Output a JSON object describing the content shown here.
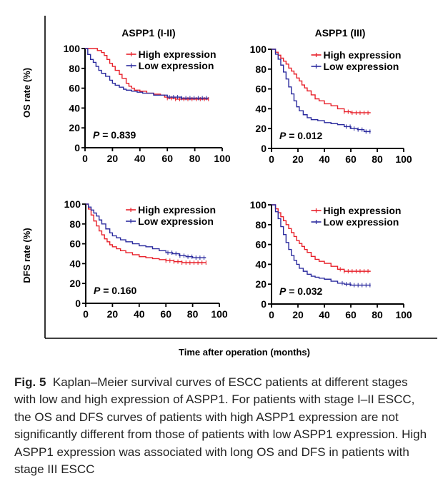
{
  "figure": {
    "label": "Fig. 5",
    "caption": "Kaplan–Meier survival curves of ESCC patients at different stages with low and high expression of ASPP1. For patients with stage I–II ESCC, the OS and DFS curves of patients with high ASPP1 expression are not significantly different from those of patients with low ASPP1 expression. High ASPP1 expression was associated with long OS and DFS in patients with stage III ESCC",
    "shared_xlabel": "Time after operation (months)",
    "row_labels": [
      "OS rate (%)",
      "DFS rate (%)"
    ],
    "column_titles": [
      "ASPP1 (I-II)",
      "ASPP1 (III)"
    ]
  },
  "colors": {
    "high": "#e8202a",
    "low": "#2b2b9e",
    "axis": "#000000"
  },
  "chart_data": [
    {
      "type": "line",
      "title": "ASPP1 (I-II)",
      "ylabel": "OS rate (%)",
      "xlabel": "",
      "xlim": [
        0,
        100
      ],
      "ylim": [
        0,
        100
      ],
      "xticks": [
        0,
        20,
        40,
        60,
        80,
        100
      ],
      "yticks": [
        0,
        20,
        40,
        60,
        80,
        100
      ],
      "annotation": "P = 0.839",
      "legend": "top-right",
      "grid": false,
      "series": [
        {
          "name": "High expression",
          "color": "#e8202a",
          "x": [
            0,
            6,
            9,
            12,
            14,
            16,
            18,
            20,
            22,
            25,
            27,
            30,
            32,
            34,
            36,
            40,
            45,
            50,
            55,
            58,
            60,
            66,
            90
          ],
          "y": [
            100,
            100,
            98,
            96,
            93,
            89,
            85,
            82,
            78,
            74,
            70,
            65,
            62,
            60,
            58,
            57,
            55,
            54,
            53,
            51,
            50,
            49,
            49
          ]
        },
        {
          "name": "Low expression",
          "color": "#2b2b9e",
          "x": [
            0,
            2,
            4,
            6,
            8,
            10,
            12,
            15,
            18,
            20,
            22,
            25,
            28,
            30,
            34,
            38,
            42,
            50,
            60,
            70,
            90
          ],
          "y": [
            100,
            94,
            89,
            86,
            82,
            78,
            75,
            72,
            68,
            65,
            63,
            61,
            59,
            58,
            57,
            56,
            55,
            53,
            51,
            50,
            50
          ]
        }
      ],
      "censor_x_range": [
        60,
        90
      ]
    },
    {
      "type": "line",
      "title": "ASPP1 (III)",
      "ylabel": "",
      "xlabel": "",
      "xlim": [
        0,
        100
      ],
      "ylim": [
        0,
        100
      ],
      "xticks": [
        0,
        20,
        40,
        60,
        80,
        100
      ],
      "yticks": [
        0,
        20,
        40,
        60,
        80,
        100
      ],
      "annotation": "P = 0.012",
      "legend": "top-right",
      "grid": false,
      "series": [
        {
          "name": "High expression",
          "color": "#e8202a",
          "x": [
            0,
            3,
            5,
            7,
            9,
            11,
            13,
            15,
            17,
            19,
            21,
            23,
            25,
            27,
            30,
            33,
            36,
            40,
            45,
            50,
            55,
            60,
            75
          ],
          "y": [
            100,
            97,
            94,
            91,
            88,
            85,
            81,
            78,
            75,
            71,
            68,
            64,
            61,
            58,
            54,
            50,
            48,
            45,
            43,
            40,
            37,
            36,
            36
          ]
        },
        {
          "name": "Low expression",
          "color": "#2b2b9e",
          "x": [
            0,
            3,
            5,
            7,
            9,
            11,
            13,
            15,
            17,
            19,
            21,
            24,
            27,
            30,
            35,
            40,
            45,
            50,
            55,
            60,
            65,
            70,
            75
          ],
          "y": [
            100,
            95,
            90,
            84,
            77,
            70,
            62,
            55,
            48,
            42,
            38,
            34,
            31,
            29,
            28,
            26,
            25,
            24,
            22,
            20,
            19,
            17,
            17
          ]
        }
      ],
      "censor_x_range": [
        55,
        75
      ]
    },
    {
      "type": "line",
      "title": "",
      "ylabel": "DFS rate (%)",
      "xlabel": "",
      "xlim": [
        0,
        100
      ],
      "ylim": [
        0,
        100
      ],
      "xticks": [
        0,
        20,
        40,
        60,
        80,
        100
      ],
      "yticks": [
        0,
        20,
        40,
        60,
        80,
        100
      ],
      "annotation": "P = 0.160",
      "legend": "top-right",
      "grid": false,
      "series": [
        {
          "name": "High expression",
          "color": "#e8202a",
          "x": [
            0,
            2,
            4,
            6,
            8,
            10,
            12,
            14,
            16,
            18,
            20,
            23,
            26,
            30,
            35,
            40,
            45,
            50,
            55,
            60,
            66,
            72,
            90
          ],
          "y": [
            100,
            95,
            89,
            83,
            78,
            73,
            69,
            65,
            62,
            59,
            57,
            55,
            53,
            51,
            49,
            47,
            46,
            45,
            44,
            43,
            42,
            41,
            41
          ]
        },
        {
          "name": "Low expression",
          "color": "#2b2b9e",
          "x": [
            0,
            2,
            4,
            6,
            8,
            10,
            12,
            15,
            18,
            20,
            23,
            26,
            30,
            35,
            40,
            45,
            50,
            55,
            60,
            65,
            70,
            75,
            80,
            90
          ],
          "y": [
            100,
            97,
            94,
            91,
            88,
            84,
            80,
            75,
            71,
            68,
            66,
            64,
            62,
            60,
            58,
            57,
            55,
            53,
            51,
            50,
            48,
            47,
            46,
            46
          ]
        }
      ],
      "censor_x_range": [
        60,
        90
      ]
    },
    {
      "type": "line",
      "title": "",
      "ylabel": "",
      "xlabel": "",
      "xlim": [
        0,
        100
      ],
      "ylim": [
        0,
        100
      ],
      "xticks": [
        0,
        20,
        40,
        60,
        80,
        100
      ],
      "yticks": [
        0,
        20,
        40,
        60,
        80,
        100
      ],
      "annotation": "P = 0.032",
      "legend": "top-right",
      "grid": false,
      "series": [
        {
          "name": "High expression",
          "color": "#e8202a",
          "x": [
            0,
            3,
            5,
            7,
            9,
            11,
            13,
            15,
            17,
            19,
            21,
            23,
            25,
            27,
            30,
            33,
            36,
            40,
            45,
            50,
            55,
            60,
            75
          ],
          "y": [
            100,
            96,
            92,
            88,
            84,
            80,
            76,
            72,
            68,
            64,
            61,
            58,
            55,
            52,
            48,
            45,
            43,
            41,
            38,
            35,
            33,
            33,
            33
          ]
        },
        {
          "name": "Low expression",
          "color": "#2b2b9e",
          "x": [
            0,
            3,
            5,
            7,
            9,
            11,
            13,
            15,
            17,
            19,
            21,
            24,
            27,
            30,
            33,
            36,
            40,
            45,
            50,
            55,
            60,
            65,
            70,
            75
          ],
          "y": [
            100,
            93,
            86,
            78,
            70,
            62,
            55,
            49,
            44,
            40,
            36,
            33,
            30,
            28,
            27,
            26,
            25,
            23,
            21,
            20,
            19,
            19,
            19,
            19
          ]
        }
      ],
      "censor_x_range": [
        52,
        75
      ]
    }
  ]
}
